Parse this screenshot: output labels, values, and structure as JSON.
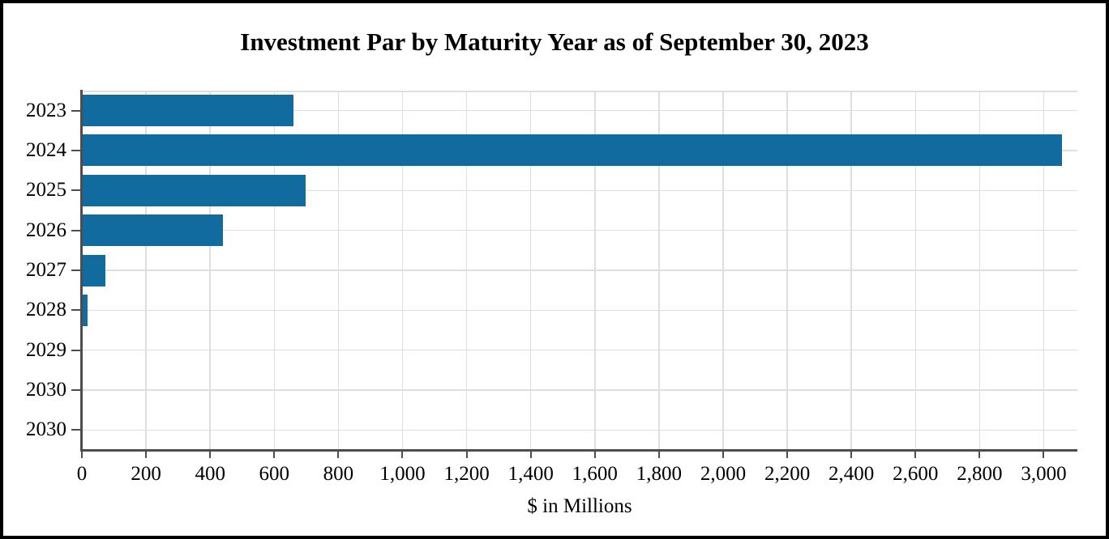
{
  "figure": {
    "background": "#FFFFFF",
    "border_color": "#000000"
  },
  "chart_data": {
    "type": "bar",
    "orientation": "horizontal",
    "title": "Investment Par by Maturity Year as of September 30, 2023",
    "xlabel": "$ in Millions",
    "ylabel": "",
    "categories": [
      "2023",
      "2024",
      "2025",
      "2026",
      "2027",
      "2028",
      "2029",
      "2030",
      "2030"
    ],
    "values": [
      660,
      3058,
      697,
      439,
      74,
      18,
      0,
      0,
      0
    ],
    "xlim": [
      0,
      3105
    ],
    "x_tick_step": 200,
    "x_tick_labels": [
      "0",
      "200",
      "400",
      "600",
      "800",
      "1,000",
      "1,200",
      "1,400",
      "1,600",
      "1,800",
      "2,000",
      "2,200",
      "2,400",
      "2,600",
      "2,800",
      "3,000"
    ],
    "grid": true,
    "legend": false,
    "gridlines": "light gray, vertical every 200 and horizontal through each category center, plus plot top edge",
    "bar_color": "#116B9E",
    "gridline_color": "#DEDEDE",
    "axis_color": "#4D4D4D",
    "text_color": "#000000"
  }
}
